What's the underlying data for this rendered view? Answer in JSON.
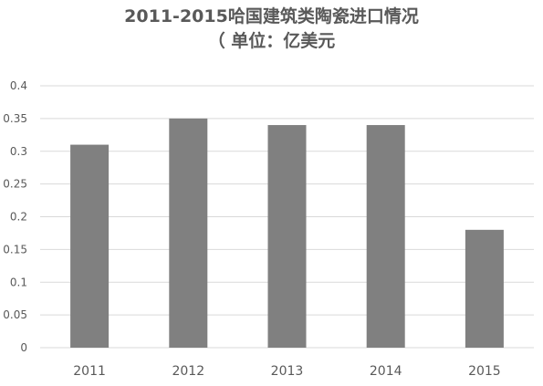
{
  "chart_data": {
    "type": "bar",
    "title": "2011-2015哈国建筑类陶瓷进口情况",
    "subtitle": "（ 单位：亿美元",
    "categories": [
      "2011",
      "2012",
      "2013",
      "2014",
      "2015"
    ],
    "values": [
      0.31,
      0.35,
      0.34,
      0.34,
      0.18
    ],
    "ylim": [
      0,
      0.4
    ],
    "yticks": [
      "0",
      "0.05",
      "0.1",
      "0.15",
      "0.2",
      "0.25",
      "0.3",
      "0.35",
      "0.4"
    ],
    "grid": true,
    "bar_color": "#808080",
    "grid_color": "#d9d9d9",
    "text_color": "#595959"
  }
}
